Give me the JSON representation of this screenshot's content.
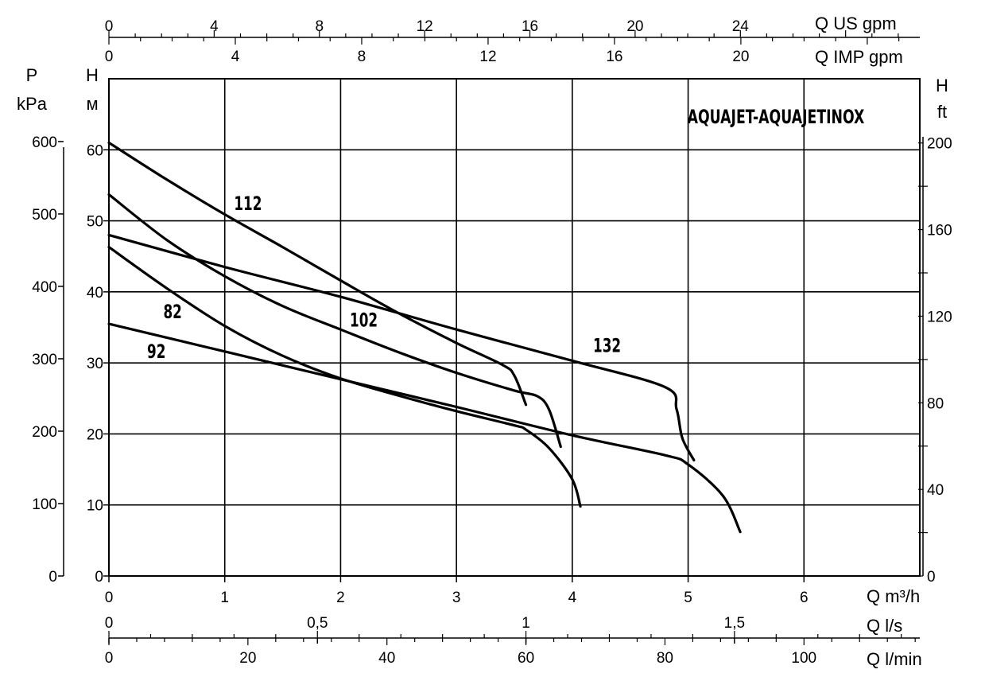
{
  "chart_data": {
    "type": "line",
    "title": "AQUAJET-AQUAJETINOX",
    "grid": true,
    "x_axes": {
      "m3h": {
        "label": "Q m³/h",
        "ticks": [
          "0",
          "1",
          "2",
          "3",
          "4",
          "5",
          "6"
        ],
        "range": [
          0,
          7
        ]
      },
      "ls": {
        "label": "Q l/s",
        "ticks": [
          "0",
          "0,5",
          "1",
          "1,5"
        ],
        "tick_values": [
          0,
          0.5,
          1,
          1.5
        ]
      },
      "lmin": {
        "label": "Q l/min",
        "ticks": [
          "0",
          "20",
          "40",
          "60",
          "80",
          "100"
        ],
        "tick_values": [
          0,
          20,
          40,
          60,
          80,
          100
        ]
      },
      "usgpm": {
        "label": "Q US gpm",
        "ticks": [
          "0",
          "4",
          "8",
          "12",
          "16",
          "20",
          "24"
        ],
        "tick_values": [
          0,
          4,
          8,
          12,
          16,
          20,
          24
        ]
      },
      "impgpm": {
        "label": "Q IMP gpm",
        "ticks": [
          "0",
          "4",
          "8",
          "12",
          "16",
          "20"
        ],
        "tick_values": [
          0,
          4,
          8,
          12,
          16,
          20
        ]
      }
    },
    "y_axes": {
      "m": {
        "label_top": "H",
        "label_unit": "м",
        "ticks": [
          "0",
          "10",
          "20",
          "30",
          "40",
          "50",
          "60"
        ],
        "range": [
          0,
          70
        ]
      },
      "kpa": {
        "label_top": "P",
        "label_unit": "kPa",
        "ticks": [
          "0",
          "100",
          "200",
          "300",
          "400",
          "500",
          "600"
        ],
        "tick_values": [
          0,
          100,
          200,
          300,
          400,
          500,
          600
        ]
      },
      "ft": {
        "label_top": "H",
        "label_unit": "ft",
        "ticks": [
          "0",
          "40",
          "80",
          "120",
          "160",
          "200"
        ],
        "tick_values": [
          0,
          40,
          80,
          120,
          160,
          200
        ]
      }
    },
    "series": [
      {
        "name": "82",
        "color": "#000000",
        "x": [
          0,
          0.5,
          1.0,
          1.5,
          2.0,
          2.5,
          3.0,
          3.5,
          3.6,
          3.8,
          4.0,
          4.07
        ],
        "y": [
          46.3,
          40.5,
          35.2,
          31.0,
          27.8,
          25.4,
          23.2,
          21.2,
          20.6,
          18.0,
          13.6,
          9.8
        ]
      },
      {
        "name": "92",
        "color": "#000000",
        "x": [
          0,
          1.0,
          2.0,
          3.0,
          4.0,
          4.8,
          5.0,
          5.3,
          5.45
        ],
        "y": [
          35.5,
          31.6,
          27.7,
          23.8,
          19.8,
          17.0,
          15.7,
          11.3,
          6.2
        ]
      },
      {
        "name": "102",
        "color": "#000000",
        "x": [
          0,
          0.5,
          1.0,
          1.5,
          2.0,
          2.5,
          3.0,
          3.5,
          3.7,
          3.8,
          3.9
        ],
        "y": [
          53.7,
          47.3,
          42.2,
          38.0,
          34.7,
          31.5,
          28.6,
          26.1,
          25.3,
          23.4,
          18.2
        ]
      },
      {
        "name": "112",
        "color": "#000000",
        "x": [
          0,
          0.5,
          1.0,
          1.5,
          2.0,
          2.5,
          3.0,
          3.4,
          3.5,
          3.6
        ],
        "y": [
          61.0,
          55.8,
          50.9,
          46.3,
          41.6,
          37.0,
          32.8,
          29.7,
          28.2,
          24.1
        ]
      },
      {
        "name": "132",
        "color": "#000000",
        "x": [
          0,
          1.0,
          2.0,
          3.0,
          4.0,
          4.8,
          4.9,
          4.95,
          5.05
        ],
        "y": [
          48.0,
          43.5,
          39.3,
          34.7,
          30.3,
          26.6,
          23.5,
          19.4,
          16.3
        ]
      }
    ]
  }
}
